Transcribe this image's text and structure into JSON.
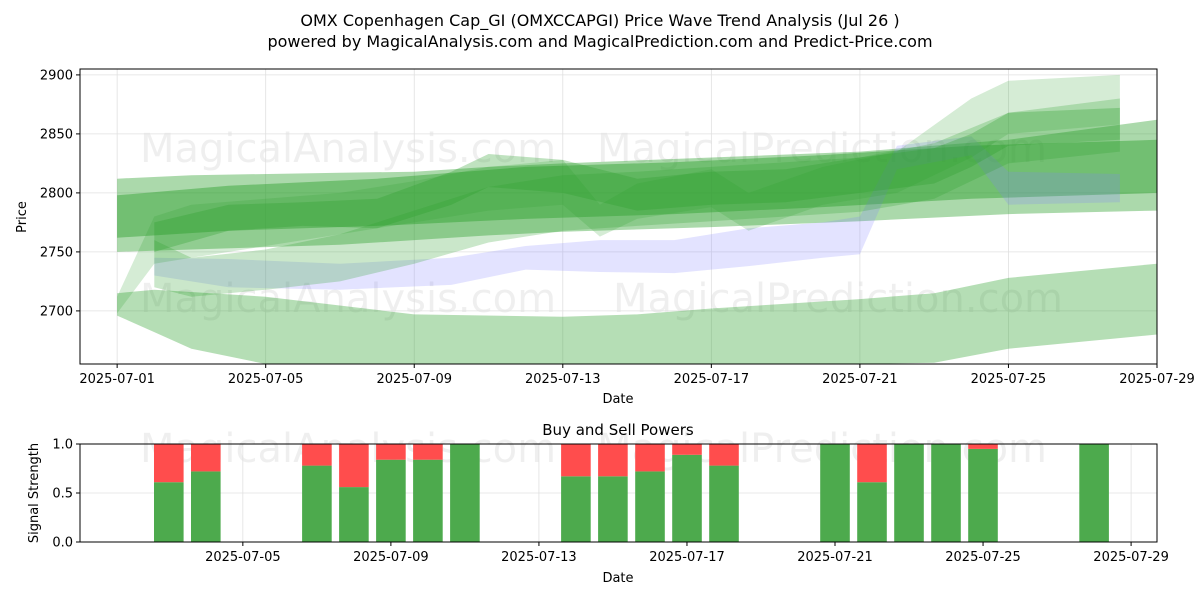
{
  "header": {
    "title_line1": "OMX Copenhagen Cap_GI (OMXCCAPGI) Price Wave Trend Analysis (Jul 26 )",
    "title_line2": "powered by MagicalAnalysis.com and MagicalPrediction.com and Predict-Price.com"
  },
  "watermarks": {
    "left": "MagicalAnalysis.com",
    "right": "MagicalPrediction.com"
  },
  "colors": {
    "band_green": "#2ca02c",
    "band_blue": "#8080ff",
    "buy": "#4daa4d",
    "sell": "#ff4d4d"
  },
  "chart_data": [
    {
      "type": "area",
      "title": "",
      "xlabel": "Date",
      "ylabel": "Price",
      "xlim": [
        "2025-06-30",
        "2025-07-29"
      ],
      "ylim": [
        2655,
        2905
      ],
      "grid": true,
      "x_ticks": [
        "2025-07-01",
        "2025-07-05",
        "2025-07-09",
        "2025-07-13",
        "2025-07-17",
        "2025-07-21",
        "2025-07-25",
        "2025-07-29"
      ],
      "y_ticks": [
        2700,
        2750,
        2800,
        2850,
        2900
      ],
      "series": [
        {
          "color": "#2ca02c",
          "opacity": 0.35,
          "points": [
            [
              "2025-07-01",
              2696,
              2715
            ],
            [
              "2025-07-02",
              2682,
              2718
            ],
            [
              "2025-07-03",
              2668,
              2716
            ],
            [
              "2025-07-05",
              2655,
              2712
            ],
            [
              "2025-07-09",
              2655,
              2697
            ],
            [
              "2025-07-13",
              2655,
              2695
            ],
            [
              "2025-07-15",
              2655,
              2697
            ],
            [
              "2025-07-17",
              2655,
              2702
            ],
            [
              "2025-07-21",
              2655,
              2710
            ],
            [
              "2025-07-23",
              2656,
              2715
            ],
            [
              "2025-07-25",
              2668,
              2728
            ],
            [
              "2025-07-29",
              2680,
              2740
            ]
          ]
        },
        {
          "color": "#2ca02c",
          "opacity": 0.4,
          "points": [
            [
              "2025-07-01",
              2750,
              2812
            ],
            [
              "2025-07-03",
              2752,
              2815
            ],
            [
              "2025-07-07",
              2756,
              2817
            ],
            [
              "2025-07-09",
              2760,
              2818
            ],
            [
              "2025-07-11",
              2764,
              2822
            ],
            [
              "2025-07-13",
              2767,
              2825
            ],
            [
              "2025-07-17",
              2771,
              2830
            ],
            [
              "2025-07-21",
              2776,
              2835
            ],
            [
              "2025-07-25",
              2782,
              2845
            ],
            [
              "2025-07-29",
              2785,
              2862
            ]
          ]
        },
        {
          "color": "#2ca02c",
          "opacity": 0.45,
          "points": [
            [
              "2025-07-01",
              2762,
              2798
            ],
            [
              "2025-07-04",
              2768,
              2806
            ],
            [
              "2025-07-08",
              2772,
              2812
            ],
            [
              "2025-07-12",
              2778,
              2822
            ],
            [
              "2025-07-16",
              2782,
              2826
            ],
            [
              "2025-07-20",
              2788,
              2832
            ],
            [
              "2025-07-24",
              2795,
              2840
            ],
            [
              "2025-07-29",
              2800,
              2845
            ]
          ]
        },
        {
          "color": "#8080ff",
          "opacity": 0.22,
          "points": [
            [
              "2025-07-02",
              2730,
              2745
            ],
            [
              "2025-07-04",
              2720,
              2744
            ],
            [
              "2025-07-07",
              2718,
              2740
            ],
            [
              "2025-07-10",
              2722,
              2745
            ],
            [
              "2025-07-12",
              2735,
              2755
            ],
            [
              "2025-07-14",
              2733,
              2760
            ],
            [
              "2025-07-16",
              2732,
              2760
            ],
            [
              "2025-07-18",
              2738,
              2770
            ],
            [
              "2025-07-20",
              2745,
              2775
            ],
            [
              "2025-07-21",
              2748,
              2780
            ],
            [
              "2025-07-22",
              2820,
              2840
            ],
            [
              "2025-07-24",
              2832,
              2848
            ],
            [
              "2025-07-25",
              2790,
              2818
            ],
            [
              "2025-07-28",
              2792,
              2816
            ]
          ]
        },
        {
          "color": "#2ca02c",
          "opacity": 0.2,
          "points": [
            [
              "2025-07-01",
              2698,
              2712
            ],
            [
              "2025-07-02",
              2740,
              2780
            ],
            [
              "2025-07-03",
              2745,
              2790
            ],
            [
              "2025-07-05",
              2755,
              2795
            ],
            [
              "2025-07-07",
              2765,
              2800
            ],
            [
              "2025-07-09",
              2775,
              2810
            ],
            [
              "2025-07-11",
              2785,
              2822
            ],
            [
              "2025-07-13",
              2790,
              2828
            ],
            [
              "2025-07-14",
              2763,
              2790
            ],
            [
              "2025-07-15",
              2778,
              2808
            ],
            [
              "2025-07-17",
              2788,
              2820
            ],
            [
              "2025-07-18",
              2768,
              2800
            ],
            [
              "2025-07-20",
              2790,
              2822
            ],
            [
              "2025-07-22",
              2800,
              2835
            ],
            [
              "2025-07-24",
              2830,
              2880
            ],
            [
              "2025-07-25",
              2850,
              2895
            ],
            [
              "2025-07-28",
              2858,
              2900
            ]
          ]
        },
        {
          "color": "#2ca02c",
          "opacity": 0.3,
          "points": [
            [
              "2025-07-02",
              2750,
              2775
            ],
            [
              "2025-07-04",
              2768,
              2790
            ],
            [
              "2025-07-06",
              2772,
              2792
            ],
            [
              "2025-07-08",
              2770,
              2795
            ],
            [
              "2025-07-10",
              2790,
              2818
            ],
            [
              "2025-07-11",
              2805,
              2833
            ],
            [
              "2025-07-13",
              2800,
              2828
            ],
            [
              "2025-07-15",
              2785,
              2812
            ],
            [
              "2025-07-17",
              2790,
              2818
            ],
            [
              "2025-07-19",
              2792,
              2820
            ],
            [
              "2025-07-21",
              2800,
              2830
            ],
            [
              "2025-07-23",
              2808,
              2838
            ],
            [
              "2025-07-24",
              2822,
              2850
            ],
            [
              "2025-07-25",
              2840,
              2868
            ],
            [
              "2025-07-28",
              2845,
              2872
            ]
          ]
        },
        {
          "color": "#2ca02c",
          "opacity": 0.25,
          "points": [
            [
              "2025-07-02",
              2720,
              2760
            ],
            [
              "2025-07-03",
              2712,
              2745
            ],
            [
              "2025-07-05",
              2718,
              2752
            ],
            [
              "2025-07-07",
              2725,
              2765
            ],
            [
              "2025-07-09",
              2740,
              2785
            ],
            [
              "2025-07-11",
              2758,
              2805
            ],
            [
              "2025-07-13",
              2768,
              2815
            ],
            [
              "2025-07-15",
              2772,
              2818
            ],
            [
              "2025-07-17",
              2776,
              2822
            ],
            [
              "2025-07-19",
              2780,
              2826
            ],
            [
              "2025-07-21",
              2784,
              2830
            ],
            [
              "2025-07-23",
              2795,
              2842
            ],
            [
              "2025-07-25",
              2825,
              2868
            ],
            [
              "2025-07-28",
              2835,
              2880
            ]
          ]
        }
      ]
    },
    {
      "type": "bar",
      "title": "Buy and Sell Powers",
      "xlabel": "Date",
      "ylabel": "Signal Strength",
      "xlim": [
        "2025-07-01",
        "2025-07-29"
      ],
      "ylim": [
        0,
        1.0
      ],
      "grid": true,
      "x_ticks": [
        "2025-07-05",
        "2025-07-09",
        "2025-07-13",
        "2025-07-17",
        "2025-07-21",
        "2025-07-25",
        "2025-07-29"
      ],
      "y_ticks": [
        "0.0",
        "0.5",
        "1.0"
      ],
      "categories": [
        "2025-07-03",
        "2025-07-04",
        "2025-07-07",
        "2025-07-08",
        "2025-07-09",
        "2025-07-10",
        "2025-07-11",
        "2025-07-14",
        "2025-07-15",
        "2025-07-16",
        "2025-07-17",
        "2025-07-18",
        "2025-07-21",
        "2025-07-22",
        "2025-07-23",
        "2025-07-24",
        "2025-07-25",
        "2025-07-28"
      ],
      "series": [
        {
          "values": [
            0.61,
            0.72,
            0.78,
            0.56,
            0.84,
            0.84,
            1.0,
            0.67,
            0.67,
            0.72,
            0.89,
            0.78,
            1.0,
            0.61,
            1.0,
            1.0,
            0.95,
            1.0
          ],
          "color": "#4daa4d"
        },
        {
          "values": [
            0.39,
            0.28,
            0.22,
            0.44,
            0.16,
            0.16,
            0.0,
            0.33,
            0.33,
            0.28,
            0.11,
            0.22,
            0.0,
            0.39,
            0.0,
            0.0,
            0.05,
            0.0
          ],
          "color": "#ff4d4d"
        }
      ]
    }
  ]
}
